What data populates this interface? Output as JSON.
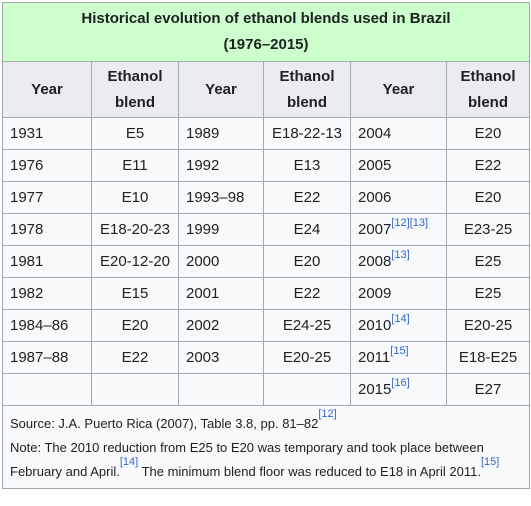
{
  "title_line1": "Historical evolution of ethanol blends used in Brazil",
  "title_line2": "(1976–2015)",
  "headers": [
    "Year",
    "Ethanol blend",
    "Year",
    "Ethanol blend",
    "Year",
    "Ethanol blend"
  ],
  "rows": [
    {
      "y1": "1931",
      "b1": "E5",
      "y2": "1989",
      "b2": "E18-22-13",
      "y3": "2004",
      "r3": "",
      "b3": "E20"
    },
    {
      "y1": "1976",
      "b1": "E11",
      "y2": "1992",
      "b2": "E13",
      "y3": "2005",
      "r3": "",
      "b3": "E22"
    },
    {
      "y1": "1977",
      "b1": "E10",
      "y2": "1993–98",
      "b2": "E22",
      "y3": "2006",
      "r3": "",
      "b3": "E20"
    },
    {
      "y1": "1978",
      "b1": "E18-20-23",
      "y2": "1999",
      "b2": "E24",
      "y3": "2007",
      "r3": "[12][13]",
      "b3": "E23-25"
    },
    {
      "y1": "1981",
      "b1": "E20-12-20",
      "y2": "2000",
      "b2": "E20",
      "y3": "2008",
      "r3": "[13]",
      "b3": "E25"
    },
    {
      "y1": "1982",
      "b1": "E15",
      "y2": "2001",
      "b2": "E22",
      "y3": "2009",
      "r3": "",
      "b3": "E25"
    },
    {
      "y1": "1984–86",
      "b1": "E20",
      "y2": "2002",
      "b2": "E24-25",
      "y3": "2010",
      "r3": "[14]",
      "b3": "E20-25"
    },
    {
      "y1": "1987–88",
      "b1": "E22",
      "y2": "2003",
      "b2": "E20-25",
      "y3": "2011",
      "r3": "[15]",
      "b3": "E18-E25"
    },
    {
      "y1": "",
      "b1": "",
      "y2": "",
      "b2": "",
      "y3": "2015",
      "r3": "[16]",
      "b3": "E27"
    }
  ],
  "source": {
    "text": "Source: J.A. Puerto Rica (2007), Table 3.8, pp. 81–82",
    "ref": "[12]"
  },
  "note": {
    "part1": "Note: The 2010 reduction from E25 to E20 was temporary and took place between February and April.",
    "ref1": "[14]",
    "part2": " The minimum blend floor was reduced to E18 in April 2011.",
    "ref2": "[15]"
  }
}
